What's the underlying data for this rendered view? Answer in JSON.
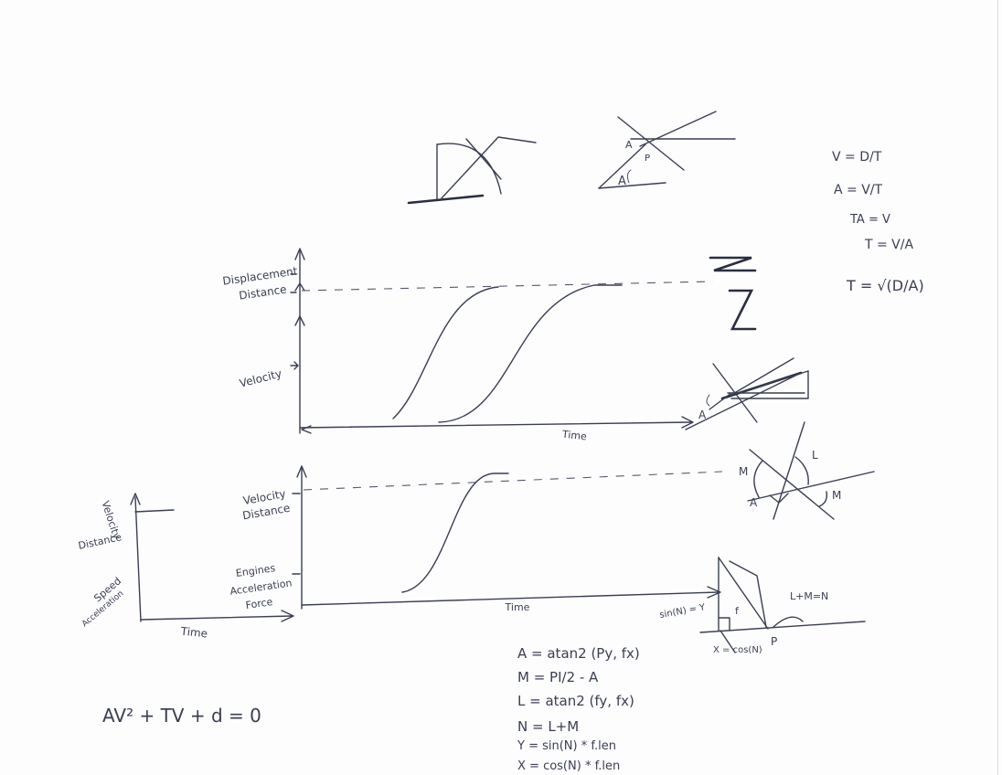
{
  "diagram": {
    "graph1": {
      "y_labels": [
        "Displacement",
        "Distance",
        "Velocity"
      ],
      "x_label": "Time"
    },
    "graph2": {
      "y_labels": [
        "Velocity",
        "Distance",
        "Engines",
        "Acceleration",
        "Force"
      ],
      "x_label": "Time"
    },
    "graph3": {
      "y_labels": [
        "Velocity",
        "Distance",
        "Speed",
        "Acceleration"
      ],
      "x_label": "Time"
    },
    "triangle_labels": {
      "p": "P",
      "a": "A",
      "l": "L",
      "m": "M",
      "f": "f",
      "lm_eq": "L+M=N",
      "sin": "sin(N) = Y",
      "cos": "X = cos(N)"
    },
    "formulas": {
      "right": [
        "V = D/T",
        "A = V/T",
        "TA = V",
        "T = V/A",
        "T = √(D/A)"
      ],
      "center": [
        "A = atan2 (Py, fx)",
        "M = PI/2 - A",
        "L = atan2 (fy, fx)",
        "N = L+M",
        "Y = sin(N) * f.len",
        "X = cos(N) * f.len"
      ],
      "bottom_left": "AV² + TV + d = 0"
    }
  }
}
